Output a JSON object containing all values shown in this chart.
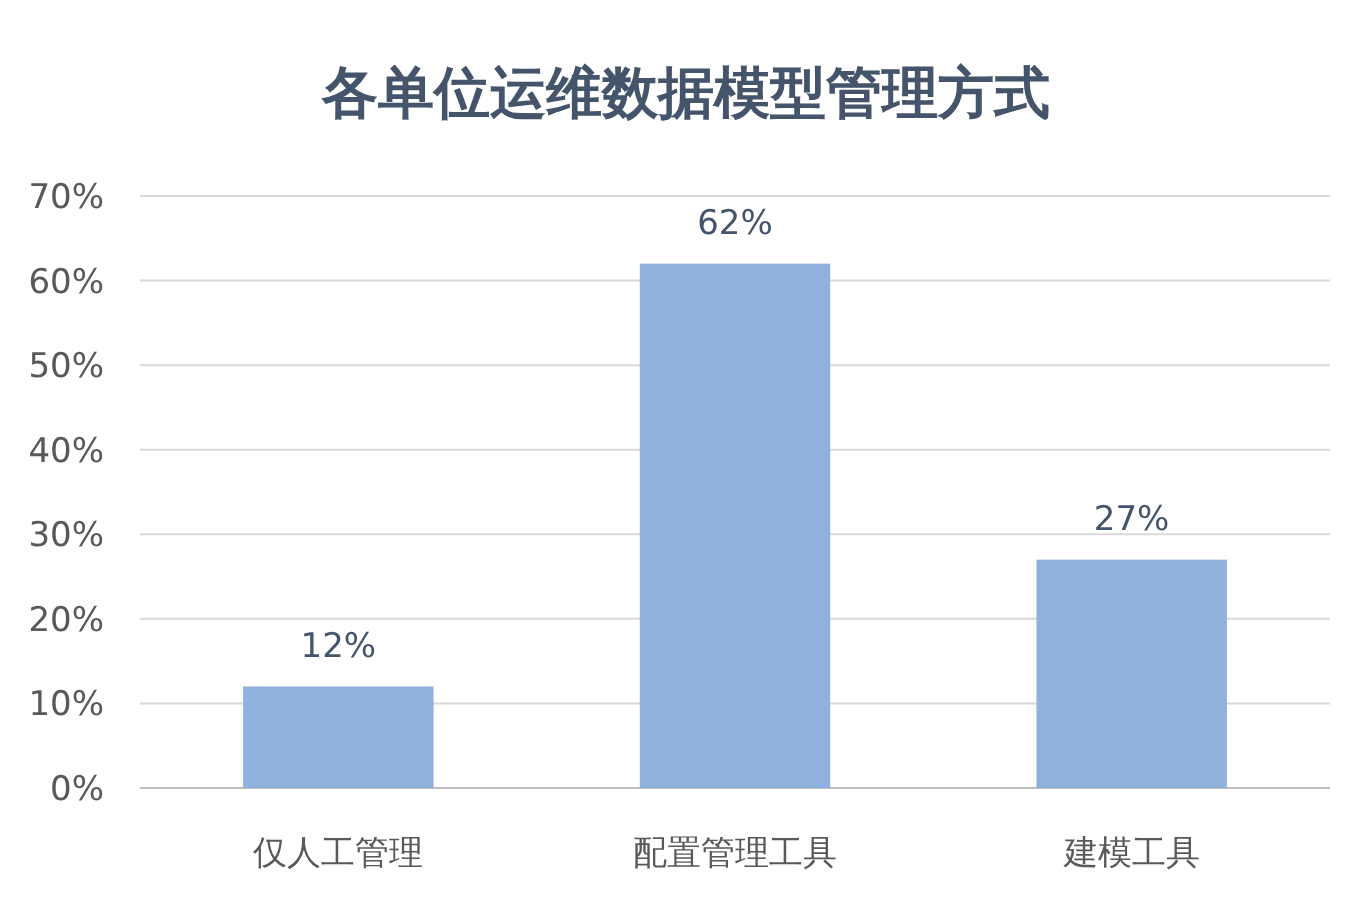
{
  "chart_data": {
    "type": "bar",
    "title": "各单位运维数据模型管理方式",
    "categories": [
      "仅人工管理",
      "配置管理工具",
      "建模工具"
    ],
    "values": [
      12,
      62,
      27
    ],
    "value_labels": [
      "12%",
      "62%",
      "27%"
    ],
    "color": "#8fb1dd",
    "ylim": [
      0,
      70
    ],
    "yticks": [
      {
        "value": 0,
        "label": "0%"
      },
      {
        "value": 10,
        "label": "10%"
      },
      {
        "value": 20,
        "label": "20%"
      },
      {
        "value": 30,
        "label": "30%"
      },
      {
        "value": 40,
        "label": "40%"
      },
      {
        "value": 50,
        "label": "50%"
      },
      {
        "value": 60,
        "label": "60%"
      },
      {
        "value": 70,
        "label": "70%"
      }
    ],
    "grid": "y"
  }
}
